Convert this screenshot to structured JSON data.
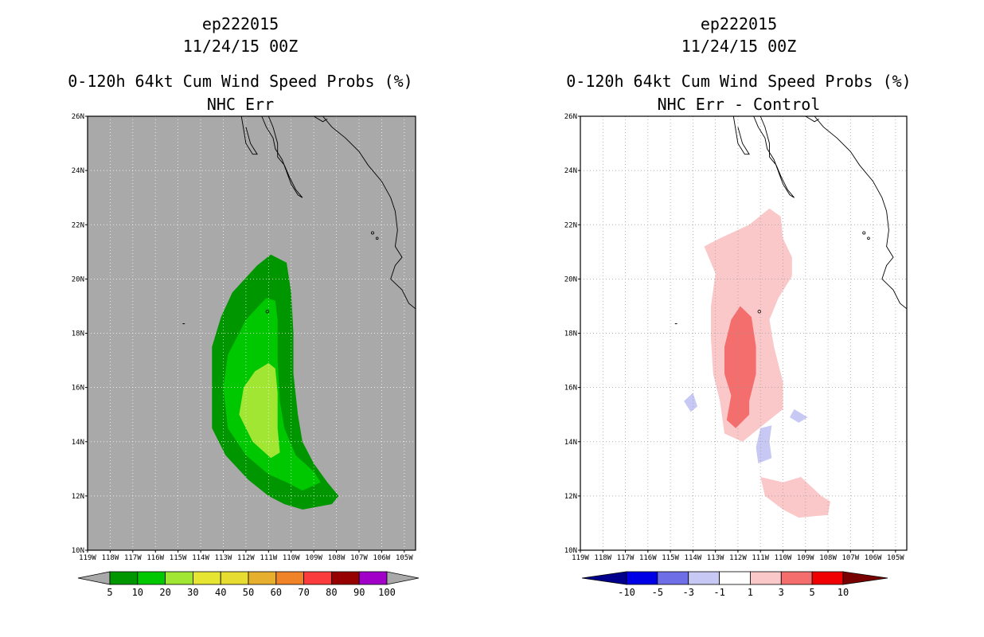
{
  "panels": [
    {
      "id": "left",
      "storm": "ep222015",
      "date": "11/24/15 00Z",
      "title": "0-120h 64kt Cum Wind Speed Probs (%)",
      "subtitle": "NHC Err",
      "background": "#a9a9a9",
      "lat_ticks": [
        "26N",
        "24N",
        "22N",
        "20N",
        "18N",
        "16N",
        "14N",
        "12N",
        "10N"
      ],
      "lon_ticks": [
        "119W",
        "118W",
        "117W",
        "116W",
        "115W",
        "114W",
        "113W",
        "112W",
        "111W",
        "110W",
        "109W",
        "108W",
        "107W",
        "106W",
        "105W"
      ],
      "colorbar": {
        "labels": [
          "5",
          "10",
          "20",
          "30",
          "40",
          "50",
          "60",
          "70",
          "80",
          "90",
          "100"
        ],
        "colors": [
          "#009600",
          "#00c800",
          "#a0e632",
          "#e6e632",
          "#e6dc32",
          "#e6af2d",
          "#f08228",
          "#fa3c3c",
          "#960000",
          "#a000c8"
        ],
        "end_colors": [
          "#a9a9a9",
          "#a9a9a9"
        ]
      }
    },
    {
      "id": "right",
      "storm": "ep222015",
      "date": "11/24/15 00Z",
      "title": "0-120h 64kt Cum Wind Speed Probs (%)",
      "subtitle": "NHC Err - Control",
      "background": "#ffffff",
      "lat_ticks": [
        "26N",
        "24N",
        "22N",
        "20N",
        "18N",
        "16N",
        "14N",
        "12N",
        "10N"
      ],
      "lon_ticks": [
        "119W",
        "118W",
        "117W",
        "116W",
        "115W",
        "114W",
        "113W",
        "112W",
        "111W",
        "110W",
        "109W",
        "108W",
        "107W",
        "106W",
        "105W"
      ],
      "colorbar": {
        "labels": [
          "-10",
          "-5",
          "-3",
          "-1",
          "1",
          "3",
          "5",
          "10"
        ],
        "colors": [
          "#0000e6",
          "#6e6ee6",
          "#c8c8f5",
          "#ffffff",
          "#fac8c8",
          "#f56e6e",
          "#f00000"
        ],
        "end_colors": [
          "#00008c",
          "#780000"
        ]
      }
    }
  ],
  "chart_data": [
    {
      "type": "heatmap",
      "title": "0-120h 64kt Cum Wind Speed Probs (%)",
      "subtitle": "NHC Err",
      "storm": "ep222015",
      "valid": "11/24/15 00Z",
      "lon_range": [
        -119,
        -104.5
      ],
      "lat_range": [
        10,
        26
      ],
      "levels": [
        5,
        10,
        20,
        30,
        40,
        50,
        60,
        70,
        80,
        90,
        100
      ],
      "contours": [
        {
          "level": 5,
          "color": "#009600",
          "points": [
            [
              -111.5,
              20.5
            ],
            [
              -110.9,
              20.9
            ],
            [
              -110.2,
              20.6
            ],
            [
              -110.0,
              19.5
            ],
            [
              -109.9,
              18.0
            ],
            [
              -109.9,
              16.5
            ],
            [
              -109.7,
              15.0
            ],
            [
              -109.5,
              14.0
            ],
            [
              -109.0,
              13.2
            ],
            [
              -108.4,
              12.5
            ],
            [
              -107.9,
              12.0
            ],
            [
              -108.2,
              11.7
            ],
            [
              -109.5,
              11.5
            ],
            [
              -110.3,
              11.7
            ],
            [
              -111.0,
              12.0
            ],
            [
              -111.9,
              12.6
            ],
            [
              -112.9,
              13.5
            ],
            [
              -113.5,
              14.5
            ],
            [
              -113.5,
              16.0
            ],
            [
              -113.5,
              17.5
            ],
            [
              -113.1,
              18.6
            ],
            [
              -112.6,
              19.5
            ]
          ]
        },
        {
          "level": 10,
          "color": "#00c800",
          "points": [
            [
              -111.1,
              19.3
            ],
            [
              -110.7,
              19.2
            ],
            [
              -110.6,
              18.5
            ],
            [
              -110.6,
              17.0
            ],
            [
              -110.5,
              15.5
            ],
            [
              -110.3,
              14.5
            ],
            [
              -109.8,
              13.5
            ],
            [
              -109.0,
              12.9
            ],
            [
              -108.7,
              12.5
            ],
            [
              -109.5,
              12.2
            ],
            [
              -110.2,
              12.5
            ],
            [
              -111.0,
              12.8
            ],
            [
              -112.0,
              13.5
            ],
            [
              -112.8,
              14.5
            ],
            [
              -113.0,
              16.0
            ],
            [
              -112.8,
              17.2
            ],
            [
              -112.0,
              18.5
            ]
          ]
        },
        {
          "level": 20,
          "color": "#a0e632",
          "points": [
            [
              -111.0,
              16.9
            ],
            [
              -110.7,
              16.7
            ],
            [
              -110.6,
              15.8
            ],
            [
              -110.6,
              14.5
            ],
            [
              -110.5,
              13.6
            ],
            [
              -110.9,
              13.4
            ],
            [
              -111.7,
              14.0
            ],
            [
              -112.3,
              15.0
            ],
            [
              -112.1,
              16.0
            ],
            [
              -111.6,
              16.6
            ]
          ]
        }
      ]
    },
    {
      "type": "heatmap",
      "title": "0-120h 64kt Cum Wind Speed Probs (%)",
      "subtitle": "NHC Err - Control",
      "storm": "ep222015",
      "valid": "11/24/15 00Z",
      "lon_range": [
        -119,
        -104.5
      ],
      "lat_range": [
        10,
        26
      ],
      "levels": [
        -10,
        -5,
        -3,
        -1,
        1,
        3,
        5,
        10
      ],
      "contours": [
        {
          "level": 1,
          "color": "#fac8c8",
          "points": [
            [
              -113.5,
              21.2
            ],
            [
              -112.8,
              21.5
            ],
            [
              -111.5,
              22.0
            ],
            [
              -110.6,
              22.6
            ],
            [
              -110.1,
              22.3
            ],
            [
              -110.0,
              21.5
            ],
            [
              -109.6,
              20.8
            ],
            [
              -109.6,
              20.1
            ],
            [
              -110.2,
              19.3
            ],
            [
              -110.6,
              18.5
            ],
            [
              -110.4,
              17.5
            ],
            [
              -110.0,
              16.2
            ],
            [
              -110.0,
              15.2
            ],
            [
              -110.9,
              14.6
            ],
            [
              -111.8,
              14.0
            ],
            [
              -112.6,
              14.3
            ],
            [
              -112.8,
              15.5
            ],
            [
              -113.1,
              16.5
            ],
            [
              -113.2,
              17.8
            ],
            [
              -113.2,
              19.0
            ],
            [
              -113.0,
              20.2
            ]
          ]
        },
        {
          "level": 1,
          "color": "#fac8c8",
          "points": [
            [
              -111.0,
              12.7
            ],
            [
              -110.0,
              12.5
            ],
            [
              -109.2,
              12.7
            ],
            [
              -108.3,
              12.0
            ],
            [
              -107.9,
              11.8
            ],
            [
              -108.0,
              11.3
            ],
            [
              -109.3,
              11.2
            ],
            [
              -110.0,
              11.5
            ],
            [
              -110.8,
              12.0
            ]
          ]
        },
        {
          "level": 3,
          "color": "#f56e6e",
          "points": [
            [
              -111.9,
              19.0
            ],
            [
              -111.4,
              18.6
            ],
            [
              -111.2,
              17.5
            ],
            [
              -111.2,
              16.5
            ],
            [
              -111.5,
              15.5
            ],
            [
              -111.5,
              15.0
            ],
            [
              -112.1,
              14.5
            ],
            [
              -112.5,
              14.8
            ],
            [
              -112.3,
              15.7
            ],
            [
              -112.6,
              16.5
            ],
            [
              -112.6,
              17.5
            ],
            [
              -112.3,
              18.5
            ]
          ]
        },
        {
          "level": -1,
          "color": "#c8c8f5",
          "points": [
            [
              -114.4,
              15.5
            ],
            [
              -114.0,
              15.8
            ],
            [
              -113.8,
              15.3
            ],
            [
              -114.1,
              15.1
            ]
          ]
        },
        {
          "level": -1,
          "color": "#c8c8f5",
          "points": [
            [
              -109.5,
              15.2
            ],
            [
              -108.9,
              14.9
            ],
            [
              -109.3,
              14.7
            ],
            [
              -109.7,
              14.9
            ]
          ]
        },
        {
          "level": -1,
          "color": "#c8c8f5",
          "points": [
            [
              -111.0,
              14.5
            ],
            [
              -110.5,
              14.6
            ],
            [
              -110.6,
              14.0
            ],
            [
              -110.5,
              13.4
            ],
            [
              -111.1,
              13.2
            ],
            [
              -111.2,
              13.8
            ]
          ]
        }
      ]
    }
  ]
}
